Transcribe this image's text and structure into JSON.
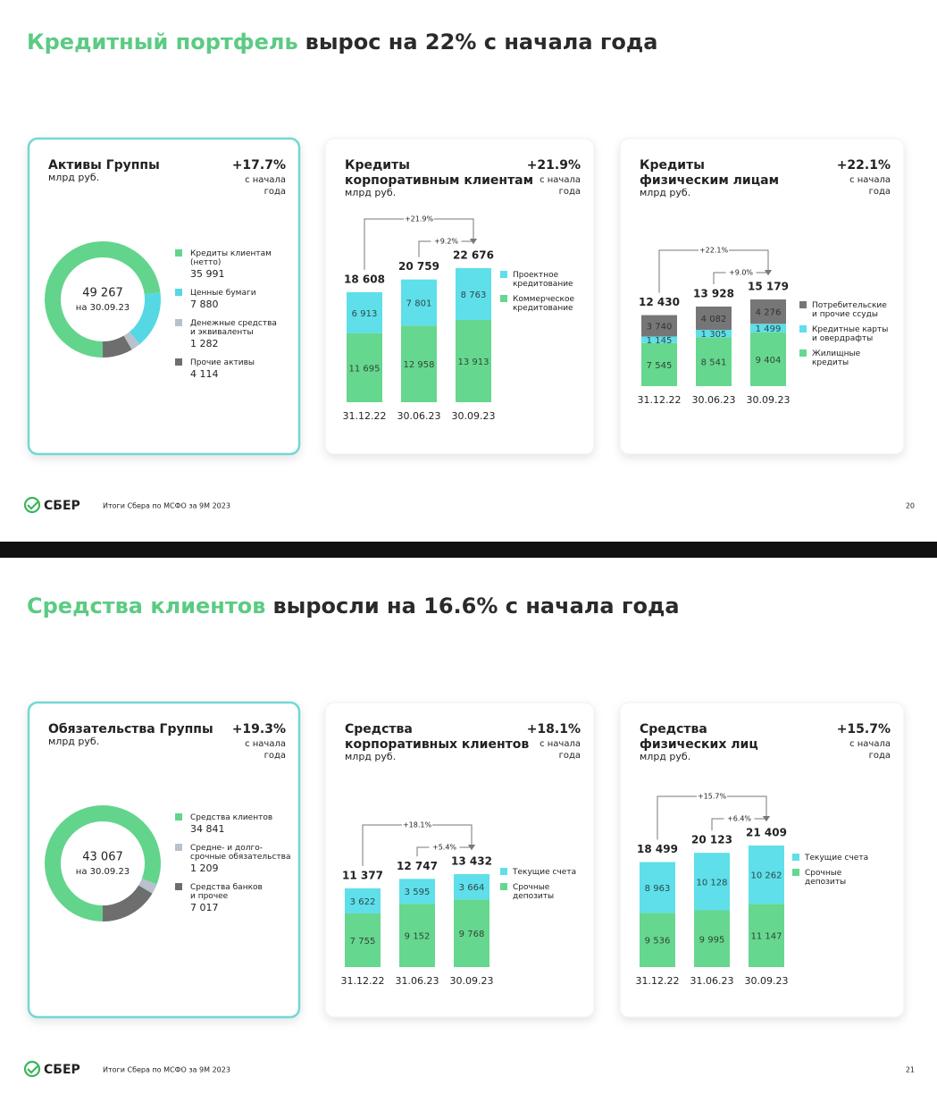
{
  "slides": [
    {
      "title_accent": "Кредитный портфель",
      "title_rest": "вырос на 22% с начала года",
      "logo": "СБЕР",
      "footer": "Итоги Сбера по МСФО за 9М 2023",
      "page": "20"
    },
    {
      "title_accent": "Средства клиентов",
      "title_rest": "выросли на 16.6% с начала года",
      "logo": "СБЕР",
      "footer": "Итоги Сбера по МСФО за 9М 2023",
      "page": "21"
    }
  ],
  "chart_data": [
    {
      "type": "donut",
      "title": [
        "Активы Группы"
      ],
      "unit": "млрд руб.",
      "change": "+17.7%",
      "change_note": [
        "с начала",
        "года"
      ],
      "total": 49267,
      "total_label": "49 267",
      "center_note": "на 30.09.23",
      "labels": [
        [
          "Кредиты клиентам",
          "(нетто)"
        ],
        [
          "Ценные бумаги"
        ],
        [
          "Денежные средства",
          "и эквиваленты"
        ],
        [
          "Прочие активы"
        ]
      ],
      "values": [
        35991,
        7880,
        1282,
        4114
      ],
      "value_labels": [
        "35 991",
        "7 880",
        "1 282",
        "4 114"
      ],
      "colors": [
        "#63d48c",
        "#55d8e4",
        "#b9c1cb",
        "#6e6e6e"
      ]
    },
    {
      "type": "stacked_bar",
      "title": [
        "Кредиты",
        "корпоративным клиентам"
      ],
      "unit": "млрд руб.",
      "change": "+21.9%",
      "change_note": [
        "с начала",
        "года"
      ],
      "categories": [
        "31.12.22",
        "30.06.23",
        "30.09.23"
      ],
      "series": [
        {
          "name": [
            "Проектное",
            "кредитование"
          ],
          "color": "#5edfe9",
          "values": [
            6913,
            7801,
            8763
          ],
          "value_labels": [
            "6 913",
            "7 801",
            "8 763"
          ]
        },
        {
          "name": [
            "Коммерческое",
            "кредитование"
          ],
          "color": "#66d78e",
          "values": [
            11695,
            12958,
            13913
          ],
          "value_labels": [
            "11 695",
            "12 958",
            "13 913"
          ]
        }
      ],
      "totals": [
        18608,
        20759,
        22676
      ],
      "total_labels": [
        "18 608",
        "20 759",
        "22 676"
      ],
      "annotations": [
        "+21.9%",
        "+9.2%"
      ]
    },
    {
      "type": "stacked_bar",
      "title": [
        "Кредиты",
        "физическим лицам"
      ],
      "unit": "млрд руб.",
      "change": "+22.1%",
      "change_note": [
        "с начала",
        "года"
      ],
      "categories": [
        "31.12.22",
        "30.06.23",
        "30.09.23"
      ],
      "series": [
        {
          "name": [
            "Потребительские",
            "и прочие ссуды"
          ],
          "color": "#767676",
          "values": [
            3740,
            4082,
            4276
          ],
          "value_labels": [
            "3 740",
            "4 082",
            "4 276"
          ]
        },
        {
          "name": [
            "Кредитные карты",
            "и овердрафты"
          ],
          "color": "#5edfe9",
          "values": [
            1145,
            1305,
            1499
          ],
          "value_labels": [
            "1 145",
            "1 305",
            "1 499"
          ]
        },
        {
          "name": [
            "Жилищные",
            "кредиты"
          ],
          "color": "#66d78e",
          "values": [
            7545,
            8541,
            9404
          ],
          "value_labels": [
            "7 545",
            "8 541",
            "9 404"
          ]
        }
      ],
      "totals": [
        12430,
        13928,
        15179
      ],
      "total_labels": [
        "12 430",
        "13 928",
        "15 179"
      ],
      "annotations": [
        "+22.1%",
        "+9.0%"
      ]
    },
    {
      "type": "donut",
      "title": [
        "Обязательства Группы"
      ],
      "unit": "млрд руб.",
      "change": "+19.3%",
      "change_note": [
        "с начала",
        "года"
      ],
      "total": 43067,
      "total_label": "43 067",
      "center_note": "на 30.09.23",
      "labels": [
        [
          "Средства клиентов"
        ],
        [
          "Средне- и долго-",
          "срочные обязательства"
        ],
        [
          "Средства банков",
          "и прочее"
        ]
      ],
      "values": [
        34841,
        1209,
        7017
      ],
      "value_labels": [
        "34 841",
        "1 209",
        "7 017"
      ],
      "colors": [
        "#63d48c",
        "#b9c1cb",
        "#6e6e6e"
      ]
    },
    {
      "type": "stacked_bar",
      "title": [
        "Средства",
        "корпоративных клиентов"
      ],
      "unit": "млрд руб.",
      "change": "+18.1%",
      "change_note": [
        "с начала",
        "года"
      ],
      "categories": [
        "31.12.22",
        "31.06.23",
        "30.09.23"
      ],
      "series": [
        {
          "name": [
            "Текущие счета"
          ],
          "color": "#5edfe9",
          "values": [
            3622,
            3595,
            3664
          ],
          "value_labels": [
            "3 622",
            "3 595",
            "3 664"
          ]
        },
        {
          "name": [
            "Срочные",
            "депозиты"
          ],
          "color": "#66d78e",
          "values": [
            7755,
            9152,
            9768
          ],
          "value_labels": [
            "7 755",
            "9 152",
            "9 768"
          ]
        }
      ],
      "totals": [
        11377,
        12747,
        13432
      ],
      "total_labels": [
        "11 377",
        "12 747",
        "13 432"
      ],
      "annotations": [
        "+18.1%",
        "+5.4%"
      ]
    },
    {
      "type": "stacked_bar",
      "title": [
        "Средства",
        "физических лиц"
      ],
      "unit": "млрд руб.",
      "change": "+15.7%",
      "change_note": [
        "с начала",
        "года"
      ],
      "categories": [
        "31.12.22",
        "31.06.23",
        "30.09.23"
      ],
      "series": [
        {
          "name": [
            "Текущие счета"
          ],
          "color": "#5edfe9",
          "values": [
            8963,
            10128,
            10262
          ],
          "value_labels": [
            "8 963",
            "10 128",
            "10 262"
          ]
        },
        {
          "name": [
            "Срочные",
            "депозиты"
          ],
          "color": "#66d78e",
          "values": [
            9536,
            9995,
            11147
          ],
          "value_labels": [
            "9 536",
            "9 995",
            "11 147"
          ]
        }
      ],
      "totals": [
        18499,
        20123,
        21409
      ],
      "total_labels": [
        "18 499",
        "20 123",
        "21 409"
      ],
      "annotations": [
        "+15.7%",
        "+6.4%"
      ]
    }
  ]
}
